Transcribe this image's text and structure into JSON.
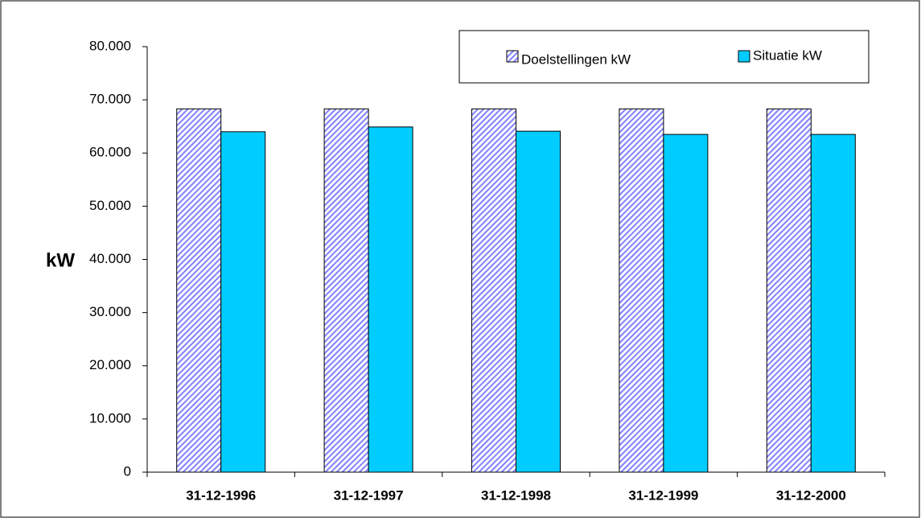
{
  "chart_data": {
    "type": "bar",
    "y_label": "kW",
    "categories": [
      "31-12-1996",
      "31-12-1997",
      "31-12-1998",
      "31-12-1999",
      "31-12-2000"
    ],
    "series": [
      {
        "name": "Doelstellingen kW",
        "color": "#8080ff",
        "values": [
          68300,
          68300,
          68300,
          68300,
          68300
        ]
      },
      {
        "name": "Situatie kW",
        "color": "#00ccff",
        "values": [
          64000,
          64900,
          64100,
          63500,
          63500
        ]
      }
    ],
    "ylim": [
      0,
      80000
    ],
    "yticks": [
      0,
      {
        "value": 10000,
        "label": "10.000"
      },
      {
        "value": 20000,
        "label": "20.000"
      },
      {
        "value": 30000,
        "label": "30.000"
      },
      {
        "value": 40000,
        "label": "40.000"
      },
      {
        "value": 50000,
        "label": "50.000"
      },
      {
        "value": 60000,
        "label": "60.000"
      },
      {
        "value": 70000,
        "label": "70.000"
      },
      {
        "value": 80000,
        "label": "80.000"
      }
    ],
    "grid": false,
    "legend": "top-right"
  }
}
